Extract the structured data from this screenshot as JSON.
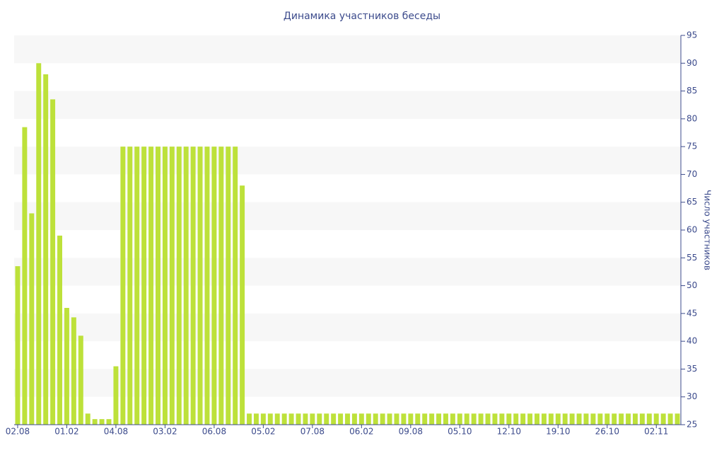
{
  "chart_data": {
    "type": "bar",
    "title": "Динамика участников беседы",
    "y_label": "Число участников",
    "categories": [
      "02.08",
      null,
      null,
      null,
      null,
      null,
      null,
      "01.02",
      null,
      null,
      null,
      null,
      null,
      null,
      "04.08",
      null,
      null,
      null,
      null,
      null,
      null,
      "03.02",
      null,
      null,
      null,
      null,
      null,
      null,
      "06.08",
      null,
      null,
      null,
      null,
      null,
      null,
      "05.02",
      null,
      null,
      null,
      null,
      null,
      null,
      "07.08",
      null,
      null,
      null,
      null,
      null,
      null,
      "06.02",
      null,
      null,
      null,
      null,
      null,
      null,
      "09.08",
      null,
      null,
      null,
      null,
      null,
      null,
      "05.10",
      null,
      null,
      null,
      null,
      null,
      null,
      "12.10",
      null,
      null,
      null,
      null,
      null,
      null,
      "19.10",
      null,
      null,
      null,
      null,
      null,
      null,
      "26.10",
      null,
      null,
      null,
      null,
      null,
      null,
      "02.11",
      null,
      null,
      null
    ],
    "values": [
      53.5,
      78.5,
      63,
      90,
      88,
      83.5,
      59,
      46,
      44.3,
      41,
      27,
      26,
      26,
      26,
      35.5,
      75,
      75,
      75,
      75,
      75,
      75,
      75,
      75,
      75,
      75,
      75,
      75,
      75,
      75,
      75,
      75,
      75,
      68,
      27,
      27,
      27,
      27,
      27,
      27,
      27,
      27,
      27,
      27,
      27,
      27,
      27,
      27,
      27,
      27,
      27,
      27,
      27,
      27,
      27,
      27,
      27,
      27,
      27,
      27,
      27,
      27,
      27,
      27,
      27,
      27,
      27,
      27,
      27,
      27,
      27,
      27,
      27,
      27,
      27,
      27,
      27,
      27,
      27,
      27,
      27,
      27,
      27,
      27,
      27,
      27,
      27,
      27,
      27,
      27,
      27,
      27,
      27,
      27,
      27,
      27
    ],
    "color": "#bde13a",
    "ylim": [
      25,
      95
    ],
    "yticks": [
      25,
      30,
      35,
      40,
      45,
      50,
      55,
      60,
      65,
      70,
      75,
      80,
      85,
      90,
      95
    ],
    "y_axis_side": "right",
    "banded_grid": true
  }
}
